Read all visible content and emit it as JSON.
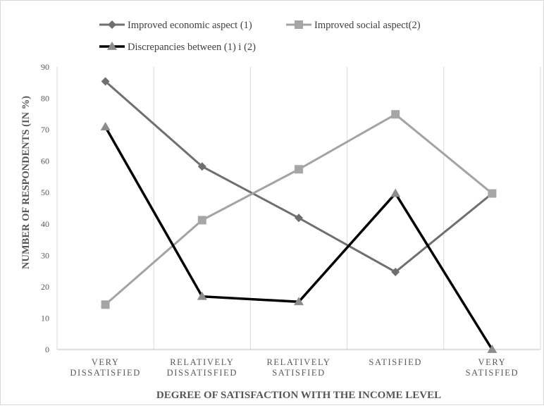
{
  "chart_data": {
    "type": "line",
    "title": "",
    "xlabel": "DEGREE OF SATISFACTION WITH THE INCOME LEVEL",
    "ylabel": "NUMBER OF RESPONDENTS (IN %)",
    "ylim": [
      0,
      90
    ],
    "yticks": [
      "0",
      "10",
      "20",
      "30",
      "40",
      "50",
      "60",
      "70",
      "80",
      "90"
    ],
    "categories": [
      [
        "VERY",
        "DISSATISFIED"
      ],
      [
        "RELATIVELY",
        "DISSATISFIED"
      ],
      [
        "RELATIVELY",
        "SATISFIED"
      ],
      [
        "SATISFIED"
      ],
      [
        "VERY",
        "SATISFIED"
      ]
    ],
    "grid": "vertical",
    "legend_position": "top",
    "series": [
      {
        "name": "Improved economic aspect (1)",
        "values": [
          85.4,
          58.3,
          41.9,
          24.7,
          49.7
        ],
        "color": "#6f6f6f",
        "marker": "diamond",
        "width": 3
      },
      {
        "name": "Improved social aspect(2)",
        "values": [
          14.3,
          41.2,
          57.4,
          74.9,
          49.7
        ],
        "color": "#a3a3a3",
        "marker": "square",
        "width": 3
      },
      {
        "name": "Discrepancies between (1) i (2)",
        "values": [
          70.9,
          16.9,
          15.2,
          49.7,
          0
        ],
        "color": "#000000",
        "marker": "triangle",
        "width": 3.5
      }
    ]
  }
}
